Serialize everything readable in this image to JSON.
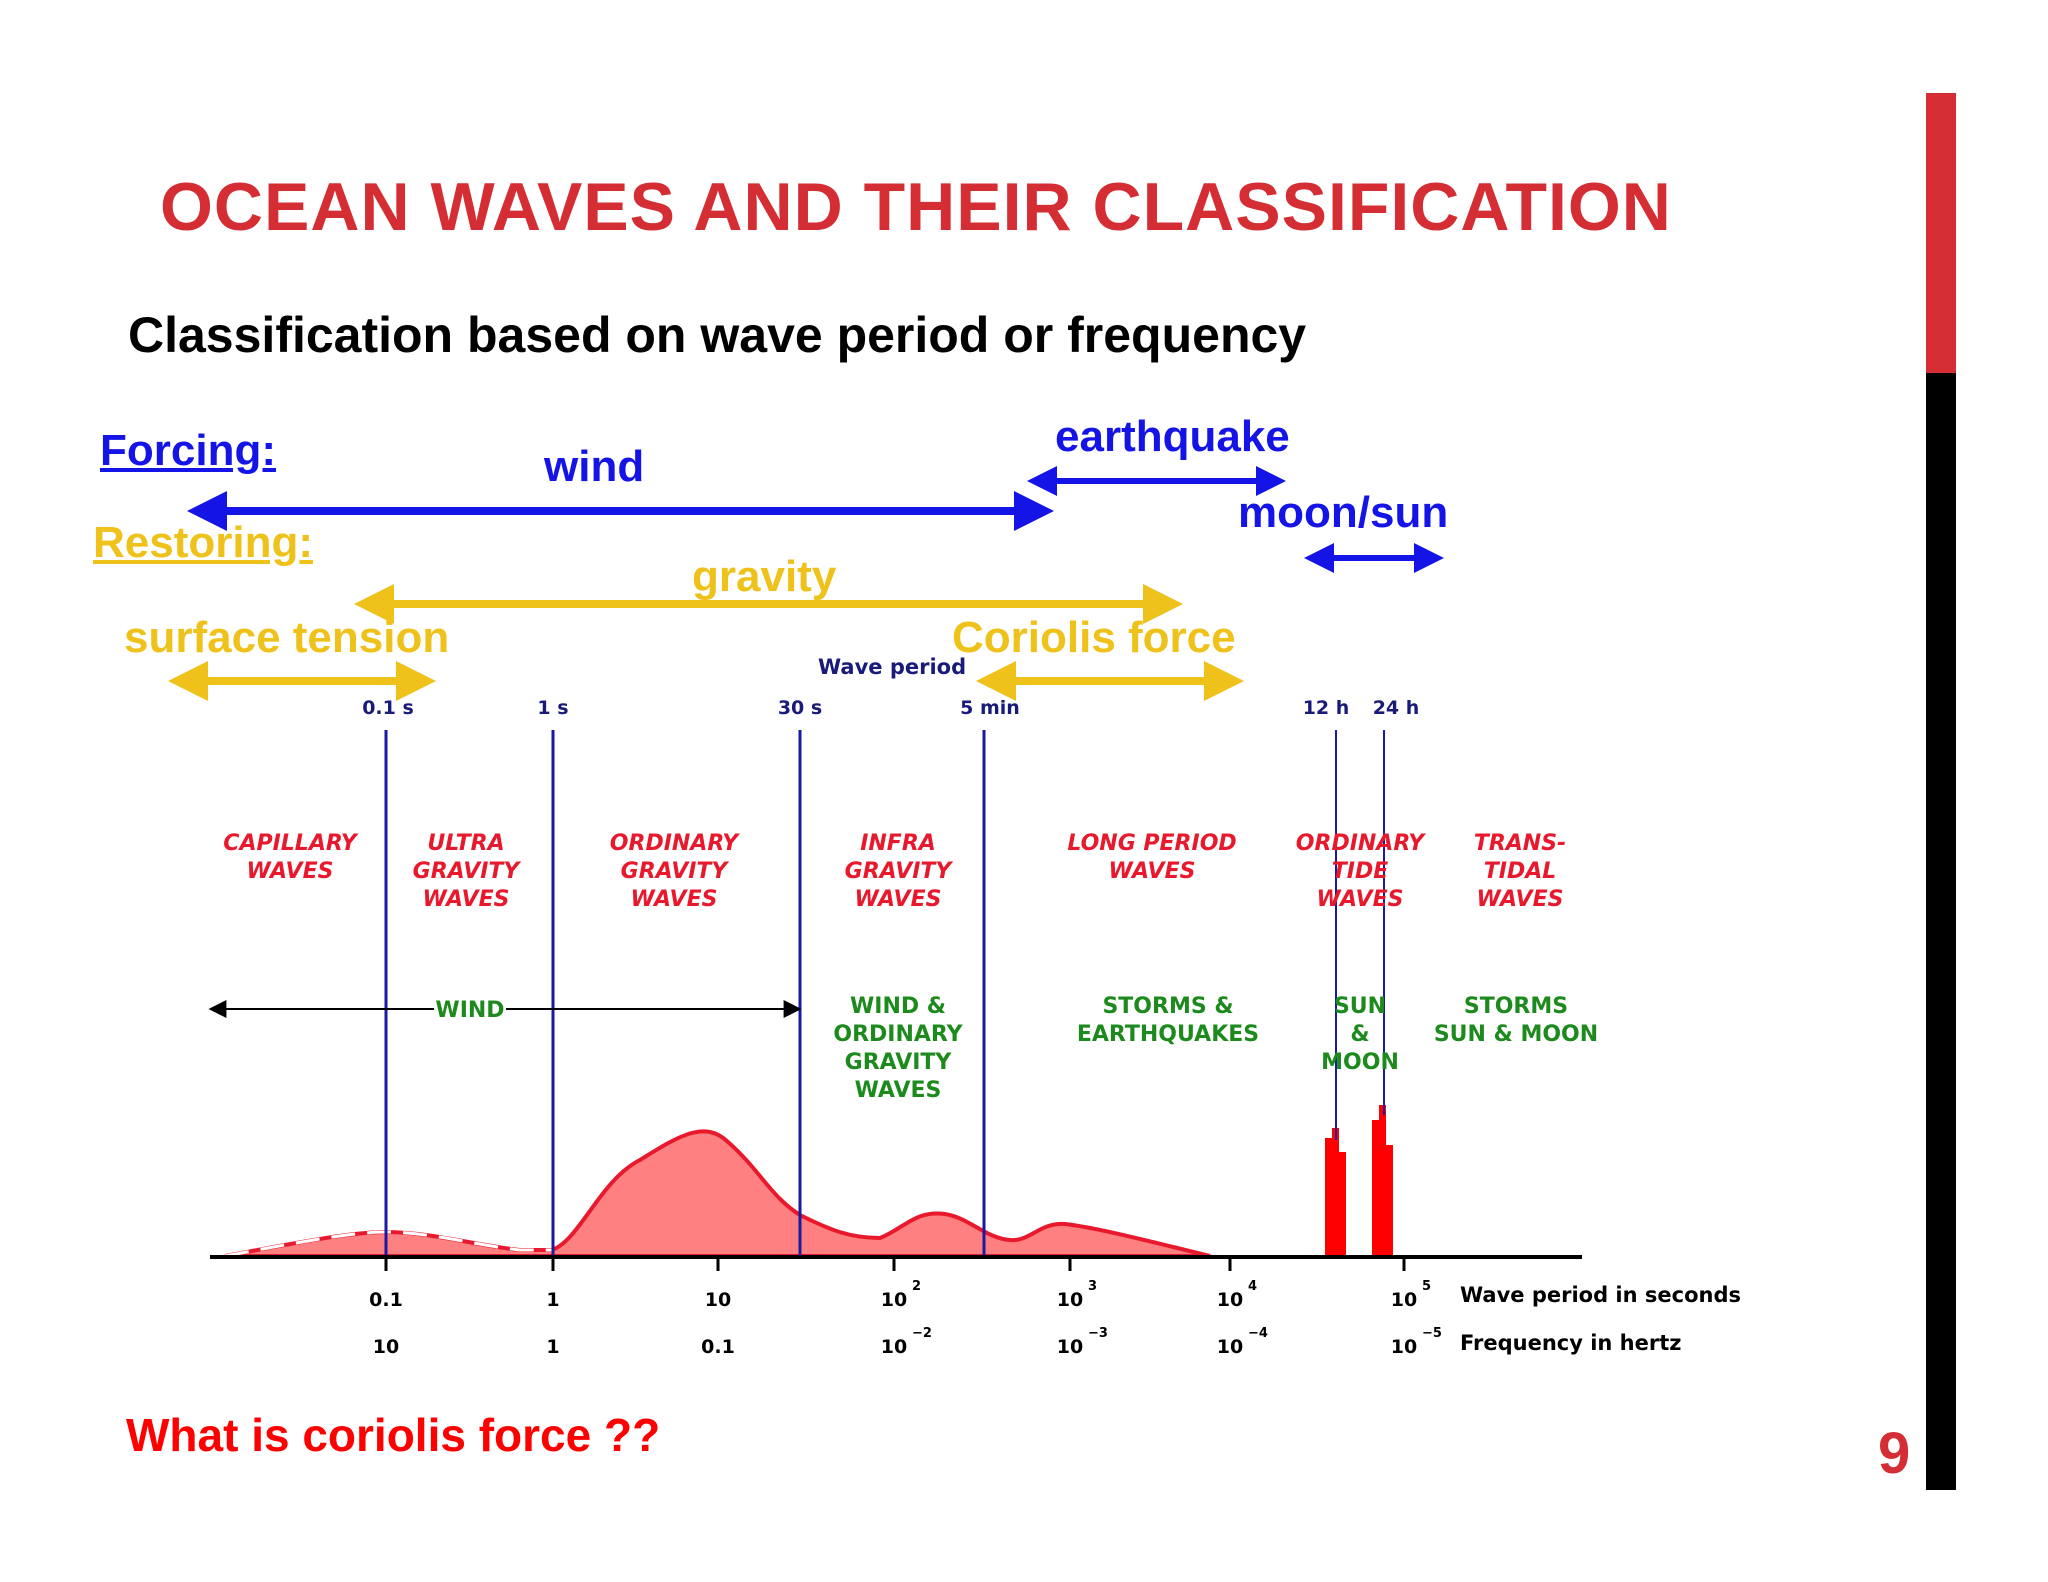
{
  "slide": {
    "title": "OCEAN WAVES AND THEIR CLASSIFICATION",
    "subtitle": "Classification based on wave period or frequency",
    "question": "What is coriolis force ??",
    "page_number": "9"
  },
  "forcing": {
    "heading": "Forcing:",
    "items": [
      "wind",
      "earthquake",
      "moon/sun"
    ]
  },
  "restoring": {
    "heading": "Restoring:",
    "items": [
      "gravity",
      "surface tension",
      "Coriolis force"
    ]
  },
  "diagram": {
    "top_axis_title": "Wave period",
    "top_ticks": [
      "0.1 s",
      "1 s",
      "30 s",
      "5 min",
      "12 h",
      "24 h"
    ],
    "wave_types": [
      {
        "lines": [
          "CAPILLARY",
          "WAVES"
        ]
      },
      {
        "lines": [
          "ULTRA",
          "GRAVITY",
          "WAVES"
        ]
      },
      {
        "lines": [
          "ORDINARY",
          "GRAVITY",
          "WAVES"
        ]
      },
      {
        "lines": [
          "INFRA",
          "GRAVITY",
          "WAVES"
        ]
      },
      {
        "lines": [
          "LONG PERIOD",
          "WAVES"
        ]
      },
      {
        "lines": [
          "ORDINARY",
          "TIDE",
          "WAVES"
        ]
      },
      {
        "lines": [
          "TRANS-",
          "TIDAL",
          "WAVES"
        ]
      }
    ],
    "generators": [
      {
        "lines": [
          "WIND"
        ]
      },
      {
        "lines": [
          "WIND &",
          "ORDINARY",
          "GRAVITY",
          "WAVES"
        ]
      },
      {
        "lines": [
          "STORMS &",
          "EARTHQUAKES"
        ]
      },
      {
        "lines": [
          "SUN",
          "&",
          "MOON"
        ]
      },
      {
        "lines": [
          "STORMS",
          "SUN & MOON"
        ]
      }
    ],
    "bottom_axis": {
      "period_label": "Wave period in seconds",
      "frequency_label": "Frequency in hertz",
      "period_ticks": [
        {
          "base": "0.1",
          "exp": ""
        },
        {
          "base": "1",
          "exp": ""
        },
        {
          "base": "10",
          "exp": ""
        },
        {
          "base": "10",
          "exp": "2"
        },
        {
          "base": "10",
          "exp": "3"
        },
        {
          "base": "10",
          "exp": "4"
        },
        {
          "base": "10",
          "exp": "5"
        }
      ],
      "frequency_ticks": [
        {
          "base": "10",
          "exp": ""
        },
        {
          "base": "1",
          "exp": ""
        },
        {
          "base": "0.1",
          "exp": ""
        },
        {
          "base": "10",
          "exp": "−2"
        },
        {
          "base": "10",
          "exp": "−3"
        },
        {
          "base": "10",
          "exp": "−4"
        },
        {
          "base": "10",
          "exp": "−5"
        }
      ]
    },
    "colors": {
      "blue_arrow": "#1414e6",
      "gold_arrow": "#eec21a",
      "spectrum_fill": "#ff8080",
      "spectrum_line": "#e8192c",
      "divider": "#1a1aa0",
      "tide_bars": "#ff0000"
    }
  }
}
